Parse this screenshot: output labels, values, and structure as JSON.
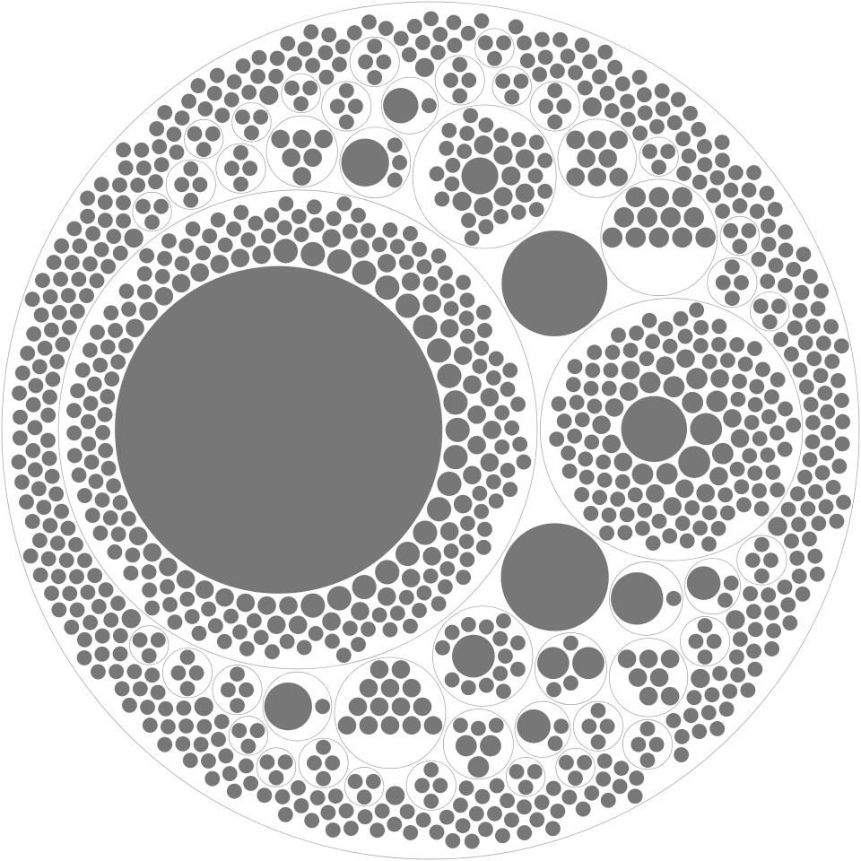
{
  "chart_data": {
    "type": "pack",
    "leaf_color": "#777777",
    "group_stroke": "#a0a0a0",
    "group_fill": "#ffffff",
    "tree": {
      "children": [
        {
          "children": [
            470,
            2.6,
            2.6,
            2.6,
            2.6,
            2.6,
            2.6,
            2.6,
            2.6,
            2.6,
            2.6,
            2.6,
            2.6,
            2.6,
            2.6,
            2.6,
            2.6,
            2.6,
            2.6,
            2.6,
            2.6,
            1.5,
            1.5,
            1.5,
            1.5,
            1.5,
            1.5,
            1.5,
            1.5,
            1.5,
            1.5,
            1.5,
            1.5,
            1.5,
            1.5,
            1.5,
            1.5,
            1.5,
            1.5,
            1.5,
            1.5,
            1.5,
            1.5,
            1.5,
            1.5,
            1.5,
            1.5,
            1.5,
            1.5,
            1.5,
            1.5,
            1.5,
            1.5,
            1.5,
            1.5,
            1.5,
            1.5,
            1.5,
            1.5,
            1.5,
            1.5,
            1,
            1,
            1,
            1,
            1,
            1,
            1,
            1,
            1,
            1,
            1,
            1,
            1,
            1,
            1,
            1,
            1,
            1,
            1,
            1,
            1,
            1,
            1,
            1,
            1,
            1,
            1,
            1,
            1,
            1,
            1,
            1,
            1,
            1,
            1,
            1,
            1,
            1,
            1,
            1,
            1,
            1,
            1,
            1,
            1,
            1,
            1,
            1,
            1,
            1,
            1,
            1,
            1,
            1,
            1,
            1,
            1,
            1,
            1,
            1,
            1,
            1,
            1,
            1,
            1,
            1,
            1,
            1,
            1,
            1,
            1,
            1,
            1,
            1,
            1,
            1,
            1,
            1,
            1,
            1,
            1,
            1,
            1,
            1,
            1,
            1,
            1,
            1,
            1,
            1,
            1,
            1,
            1,
            1,
            1,
            1,
            1,
            1,
            1,
            1,
            1,
            1,
            1,
            1,
            1,
            1,
            1,
            1,
            1,
            1,
            1,
            1,
            1,
            1,
            1,
            1,
            1,
            1,
            1,
            1,
            1,
            1,
            1,
            1,
            1,
            1,
            1,
            1,
            1,
            1,
            1,
            1,
            1,
            1,
            1,
            1,
            1,
            1,
            1,
            1,
            1,
            1,
            1,
            1,
            1,
            1,
            1,
            1,
            1,
            1
          ]
        },
        {
          "children": [
            19,
            4.5,
            4.5,
            2,
            2,
            2,
            2,
            2,
            2,
            2,
            2,
            1.5,
            1.5,
            1.5,
            1.5,
            1.5,
            1.5,
            1.5,
            1.5,
            1.5,
            1.5,
            1.5,
            1.5,
            1.5,
            1.5,
            1.5,
            1.5,
            1,
            1,
            1,
            1,
            1,
            1,
            1,
            1,
            1,
            1,
            1,
            1,
            1,
            1,
            1,
            1,
            1,
            1,
            1,
            1,
            1,
            1,
            1,
            1,
            1,
            1,
            1,
            1,
            1,
            1,
            1,
            1,
            1,
            1,
            1,
            1,
            1,
            1,
            1,
            1,
            1,
            1,
            1,
            1,
            1,
            1,
            1,
            1,
            1,
            1,
            1,
            1,
            1,
            1,
            1,
            1,
            1,
            1,
            1,
            1,
            1,
            1,
            1,
            1,
            1,
            1,
            1,
            1,
            1,
            1,
            1,
            1,
            1,
            1,
            1,
            1,
            1,
            1,
            1,
            1,
            1,
            1,
            1,
            1,
            1,
            1,
            1,
            1,
            1,
            1
          ]
        },
        51,
        49,
        {
          "children": [
            6,
            1.6,
            1.6,
            1.6,
            1.6,
            1.6,
            1.6,
            1.6,
            1.6,
            1,
            1,
            1,
            1,
            1,
            1,
            1,
            1,
            1,
            1,
            1,
            1,
            1,
            1,
            1,
            1,
            1,
            1,
            1,
            1,
            1,
            1
          ]
        },
        {
          "children": [
            8,
            1,
            1,
            1,
            1,
            1,
            1,
            1,
            1,
            1,
            1,
            1,
            1,
            1,
            1
          ]
        },
        {
          "children": [
            1.8,
            1.8,
            1.8,
            1.8,
            1.8,
            1.8,
            1.8,
            1.8,
            1.8,
            1.8,
            1.8,
            1.8
          ]
        },
        {
          "children": [
            1.5,
            1.5,
            1.5,
            1.5,
            1.5,
            1.5,
            1.5,
            1.5,
            1.5,
            1.5,
            1.5,
            1.5,
            1.5,
            1.5
          ]
        },
        {
          "children": [
            12,
            1
          ]
        },
        {
          "children": [
            10,
            1,
            1,
            1
          ]
        },
        {
          "children": [
            4.5,
            4.5,
            1,
            1,
            1
          ]
        },
        {
          "children": [
            1.5,
            1.5,
            1.5,
            1.5,
            1.5,
            1.5,
            1.5,
            1.5
          ]
        },
        {
          "children": [
            10,
            1
          ]
        },
        {
          "children": [
            1.5,
            1.5,
            1.5,
            1.5,
            1.5,
            1.5,
            1.5
          ]
        },
        {
          "children": [
            1.5,
            1.5,
            1.5,
            1.5,
            1.5,
            1.5
          ]
        },
        {
          "children": [
            2,
            2,
            2,
            1,
            1,
            1
          ]
        },
        {
          "children": [
            5,
            1,
            1
          ]
        },
        {
          "children": [
            5,
            1,
            1
          ]
        },
        {
          "children": [
            5.5,
            1
          ]
        },
        {
          "children": [
            1,
            1,
            1,
            1
          ]
        },
        {
          "children": [
            1,
            1,
            1,
            1
          ]
        },
        {
          "children": [
            1,
            1,
            1,
            1
          ]
        },
        {
          "children": [
            1,
            1,
            1,
            1
          ]
        },
        {
          "children": [
            1,
            1,
            1,
            1
          ]
        },
        {
          "children": [
            1,
            1,
            1,
            1
          ]
        },
        {
          "children": [
            1,
            1,
            1,
            1
          ]
        },
        {
          "children": [
            1,
            1,
            1,
            1
          ]
        },
        {
          "children": [
            1,
            1,
            1,
            1
          ]
        },
        {
          "children": [
            1,
            1,
            1,
            1
          ]
        },
        {
          "children": [
            1,
            1,
            1,
            1
          ]
        },
        {
          "children": [
            1,
            1,
            1,
            1
          ]
        },
        {
          "children": [
            1,
            1,
            1,
            1
          ]
        },
        {
          "children": [
            1,
            1,
            1,
            1
          ]
        },
        {
          "children": [
            1,
            1,
            1,
            1
          ]
        },
        {
          "children": [
            1,
            1,
            1
          ]
        },
        {
          "children": [
            1,
            1,
            1
          ]
        },
        {
          "children": [
            1,
            1,
            1
          ]
        },
        {
          "children": [
            1,
            1,
            1
          ]
        },
        {
          "children": [
            1,
            1,
            1
          ]
        },
        {
          "children": [
            1,
            1,
            1
          ]
        },
        {
          "children": [
            1,
            1,
            1
          ]
        },
        {
          "children": [
            1,
            1,
            1
          ]
        },
        {
          "children": [
            1,
            1,
            1
          ]
        },
        {
          "children": [
            1,
            1,
            1
          ]
        },
        {
          "children": [
            1,
            1,
            1
          ]
        },
        {
          "children": [
            1,
            1,
            1
          ]
        },
        {
          "children": [
            1,
            1,
            1
          ]
        },
        {
          "children": [
            1,
            1,
            1
          ]
        },
        {
          "children": [
            1,
            1,
            1
          ]
        },
        1.6,
        1.6,
        1.6,
        1.6,
        1.6,
        1.6,
        1.6,
        1.6,
        1.6,
        1.6,
        1,
        1,
        1,
        1,
        1,
        1,
        1,
        1,
        1,
        1,
        1,
        1,
        1,
        1,
        1,
        1,
        1,
        1,
        1,
        1,
        1,
        1,
        1,
        1,
        1,
        1,
        1,
        1,
        1,
        1,
        1,
        1,
        1,
        1,
        1,
        1,
        1,
        1,
        1,
        1,
        1,
        1,
        1,
        1,
        1,
        1,
        1,
        1,
        1,
        1,
        1,
        1,
        1,
        1,
        1,
        1,
        1,
        1,
        1,
        1,
        1,
        1,
        1,
        1,
        1,
        1,
        1,
        1,
        1,
        1,
        1,
        1,
        1,
        1,
        1,
        1,
        1,
        1,
        1,
        1,
        1,
        1,
        1,
        1,
        1,
        1,
        1,
        1,
        1,
        1,
        1,
        1,
        1,
        1,
        1,
        1,
        1,
        1,
        1,
        1,
        1,
        1,
        1,
        1,
        1,
        1,
        1,
        1,
        1,
        1,
        1,
        1,
        1,
        1,
        1,
        1,
        1,
        1,
        1,
        1,
        1,
        1,
        1,
        1,
        1,
        1,
        1,
        1,
        1,
        1,
        1,
        1,
        1,
        1,
        1,
        1,
        1,
        1,
        1,
        1,
        1,
        1,
        1,
        1,
        1,
        1,
        1,
        1,
        1,
        1,
        1,
        1,
        1,
        1,
        1,
        1,
        1,
        1,
        1,
        1,
        1,
        1,
        1,
        1,
        1,
        1,
        1,
        1,
        1,
        1,
        1,
        1,
        1,
        1,
        1,
        1,
        1,
        1,
        1,
        1,
        1,
        1,
        1,
        1,
        1,
        1,
        1,
        1,
        1,
        1,
        1,
        1,
        1,
        1,
        1,
        1,
        1,
        1,
        1,
        1,
        1,
        1,
        1,
        1,
        1,
        1,
        1,
        1,
        1,
        1,
        1,
        1,
        1,
        1,
        1,
        1,
        1,
        1,
        1,
        1,
        1,
        1,
        1,
        1,
        1,
        1,
        1,
        1,
        1,
        1,
        1,
        1,
        1,
        1,
        1,
        1,
        1,
        1,
        1,
        1,
        1,
        1,
        1,
        1,
        1,
        1,
        1,
        1,
        1,
        1,
        1,
        1,
        1,
        1,
        1,
        1,
        1,
        1,
        1,
        1,
        1,
        1,
        1,
        1,
        1,
        1,
        1,
        1,
        1,
        1,
        1,
        1,
        1,
        1,
        1,
        1,
        1,
        1,
        1,
        1,
        1,
        1,
        1,
        1,
        1,
        1,
        1,
        1,
        1,
        1,
        1,
        1,
        1,
        1,
        1,
        1,
        1,
        1,
        1,
        1,
        1,
        1,
        1,
        1,
        1,
        1,
        1,
        1,
        1,
        1,
        1,
        1,
        1,
        1,
        1,
        1,
        1,
        1,
        1,
        1,
        1,
        1,
        1,
        1,
        1,
        1,
        1,
        1,
        1,
        1,
        1,
        1,
        1,
        1,
        1,
        1,
        1,
        1,
        1,
        1,
        1,
        1,
        1,
        1,
        1,
        1,
        1,
        1,
        1,
        1,
        1,
        1,
        1,
        1,
        1,
        1,
        1,
        1,
        1,
        1
      ]
    }
  }
}
